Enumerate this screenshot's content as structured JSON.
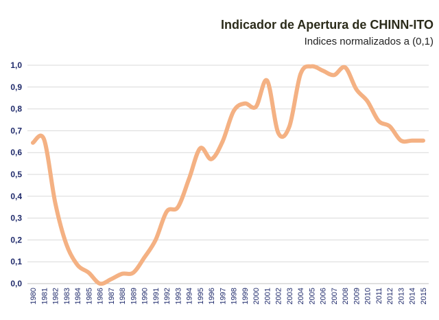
{
  "chart_data": {
    "type": "line",
    "title": "Indicador de Apertura de CHINN-ITO",
    "subtitle": "Indices normalizados a (0,1)",
    "xlabel": "",
    "ylabel": "",
    "ylim": [
      0,
      1
    ],
    "yticks": [
      "0,0",
      "0,1",
      "0,2",
      "0,3",
      "0,4",
      "0,5",
      "0,6",
      "0,7",
      "0,8",
      "0,9",
      "1,0"
    ],
    "categories": [
      "1980",
      "1981",
      "1982",
      "1983",
      "1984",
      "1985",
      "1986",
      "1987",
      "1988",
      "1989",
      "1990",
      "1991",
      "1992",
      "1993",
      "1994",
      "1995",
      "1996",
      "1997",
      "1998",
      "1999",
      "2000",
      "2001",
      "2002",
      "2003",
      "2004",
      "2005",
      "2006",
      "2007",
      "2008",
      "2009",
      "2010",
      "2011",
      "2012",
      "2013",
      "2014",
      "2015"
    ],
    "series": [
      {
        "name": "Indicador de Apertura",
        "color": "#f4b183",
        "values": [
          0.645,
          0.66,
          0.37,
          0.18,
          0.085,
          0.05,
          0.0,
          0.02,
          0.045,
          0.05,
          0.12,
          0.2,
          0.33,
          0.35,
          0.48,
          0.62,
          0.57,
          0.65,
          0.79,
          0.825,
          0.81,
          0.93,
          0.69,
          0.72,
          0.96,
          0.995,
          0.975,
          0.955,
          0.99,
          0.89,
          0.835,
          0.745,
          0.72,
          0.655,
          0.655,
          0.655
        ]
      }
    ],
    "grid": true,
    "gridColor": "#d9d9d9"
  }
}
